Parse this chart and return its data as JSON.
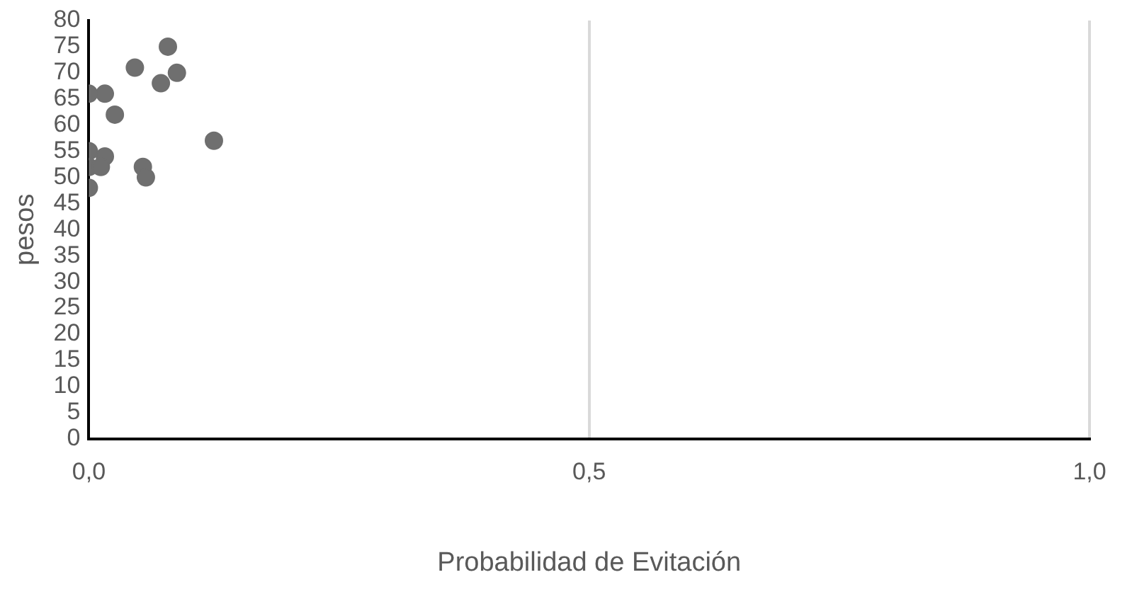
{
  "chart_data": {
    "type": "scatter",
    "xlabel": "Probabilidad de Evitación",
    "ylabel": "pesos",
    "x": [
      0.079,
      0.046,
      0.088,
      0.072,
      0,
      0.016,
      0.026,
      0.125,
      0,
      0.016,
      0,
      0.012,
      0.054,
      0.057,
      0
    ],
    "series": [
      {
        "color": "#6f6f6f",
        "values": [
          75,
          71,
          70,
          68,
          66,
          66,
          62,
          57,
          55,
          54,
          52,
          52,
          52,
          50,
          48
        ]
      }
    ],
    "xlim": [
      0,
      1
    ],
    "xticks": [
      {
        "value": 0,
        "label": "0,0"
      },
      {
        "value": 0.5,
        "label": "0,5"
      },
      {
        "value": 1,
        "label": "1,0"
      }
    ],
    "ylim": [
      0,
      80
    ],
    "yticks": [
      0,
      5,
      10,
      15,
      20,
      25,
      30,
      35,
      40,
      45,
      50,
      55,
      60,
      65,
      70,
      75,
      80
    ],
    "grid": "x",
    "legend": false,
    "marker": "circle"
  }
}
